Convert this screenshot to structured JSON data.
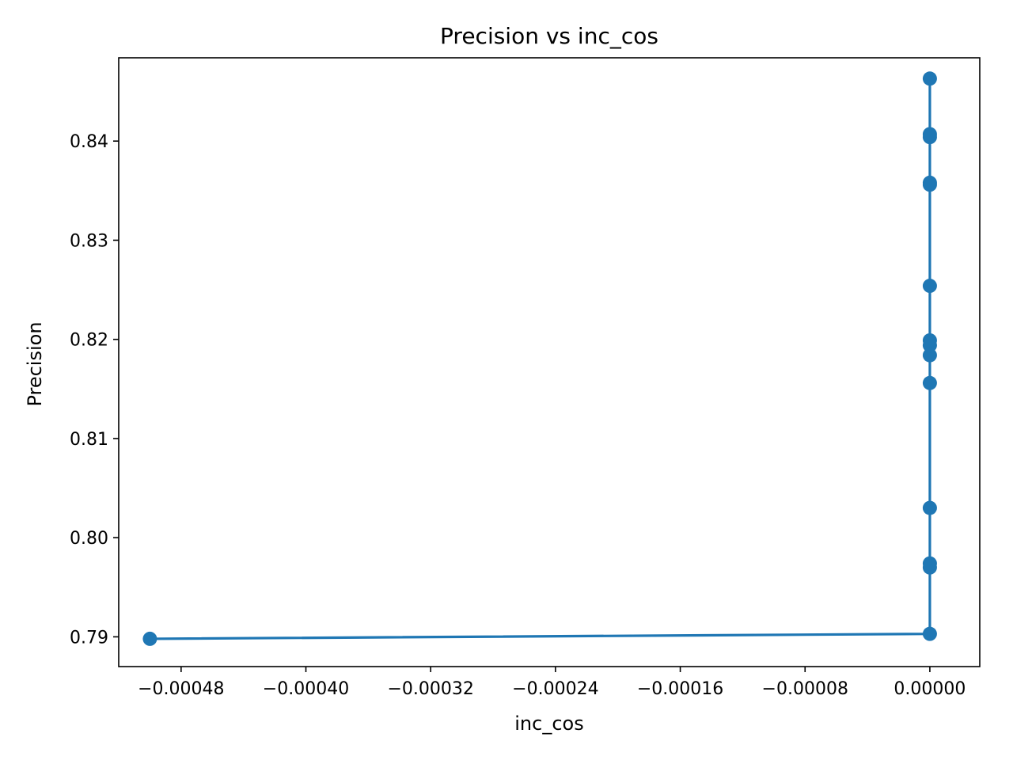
{
  "chart_data": {
    "type": "line",
    "title": "Precision vs inc_cos",
    "xlabel": "inc_cos",
    "ylabel": "Precision",
    "xlim": [
      -0.00052,
      3.2e-05
    ],
    "ylim": [
      0.787,
      0.8484
    ],
    "x_ticks": [
      -0.00048,
      -0.0004,
      -0.00032,
      -0.00024,
      -0.00016,
      -8e-05,
      0.0
    ],
    "x_tick_labels": [
      "−0.00048",
      "−0.00040",
      "−0.00032",
      "−0.00024",
      "−0.00016",
      "−0.00008",
      "0.00000"
    ],
    "y_ticks": [
      0.79,
      0.8,
      0.81,
      0.82,
      0.83,
      0.84
    ],
    "y_tick_labels": [
      "0.79",
      "0.80",
      "0.81",
      "0.82",
      "0.83",
      "0.84"
    ],
    "grid": false,
    "color": "#1f77b4",
    "series": [
      {
        "x": [
          -0.0005,
          0.0,
          0.0,
          0.0,
          0.0,
          0.0,
          0.0,
          0.0,
          0.0,
          0.0,
          0.0,
          0.0,
          0.0,
          0.0,
          0.0
        ],
        "y": [
          0.7898,
          0.7903,
          0.797,
          0.7974,
          0.803,
          0.8156,
          0.8184,
          0.8194,
          0.8199,
          0.8254,
          0.8356,
          0.8358,
          0.8404,
          0.8407,
          0.8463
        ]
      }
    ]
  }
}
